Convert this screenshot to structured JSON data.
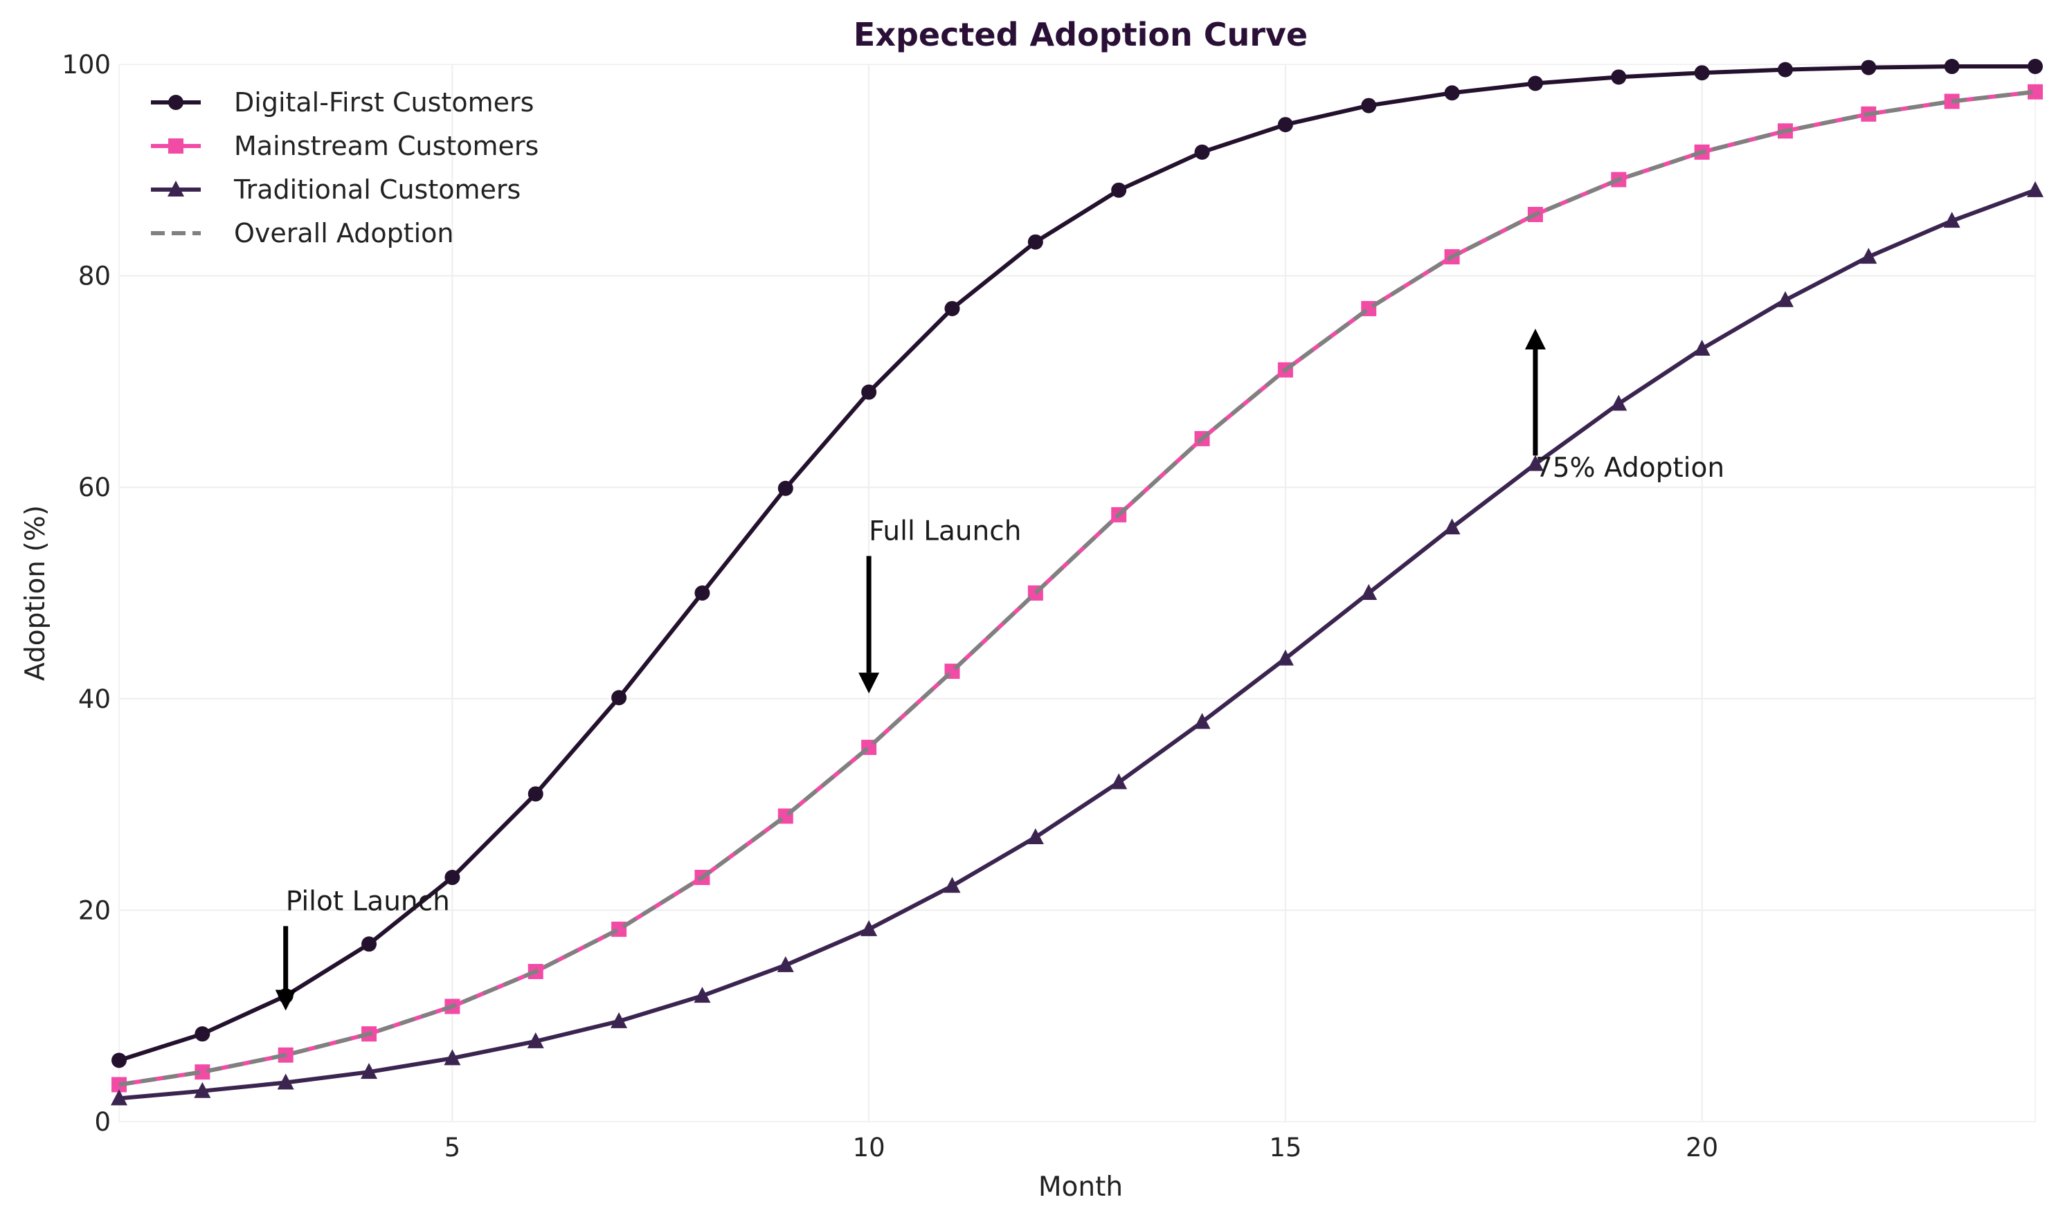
{
  "chart_data": {
    "type": "line",
    "title": "Expected Adoption Curve",
    "xlabel": "Month",
    "ylabel": "Adoption (%)",
    "xlim": [
      1,
      24
    ],
    "ylim": [
      0,
      100
    ],
    "xticks": [
      5,
      10,
      15,
      20
    ],
    "yticks": [
      0,
      20,
      40,
      60,
      80,
      100
    ],
    "grid": true,
    "legend_position": "top-left",
    "x": [
      1,
      2,
      3,
      4,
      5,
      6,
      7,
      8,
      9,
      10,
      11,
      12,
      13,
      14,
      15,
      16,
      17,
      18,
      19,
      20,
      21,
      22,
      23,
      24
    ],
    "series": [
      {
        "name": "Digital-First Customers",
        "color": "#24112e",
        "marker": "circle",
        "dashed": false,
        "values": [
          5.8,
          8.3,
          11.9,
          16.8,
          23.1,
          31.0,
          40.1,
          50.0,
          59.9,
          69.0,
          76.9,
          83.2,
          88.1,
          91.7,
          94.3,
          96.1,
          97.3,
          98.2,
          98.8,
          99.2,
          99.5,
          99.7,
          99.8,
          99.8
        ]
      },
      {
        "name": "Mainstream Customers",
        "color": "#f24ba6",
        "marker": "square",
        "dashed": false,
        "values": [
          3.5,
          4.7,
          6.3,
          8.3,
          10.9,
          14.2,
          18.2,
          23.1,
          28.9,
          35.4,
          42.6,
          50.0,
          57.4,
          64.6,
          71.1,
          76.9,
          81.8,
          85.8,
          89.1,
          91.7,
          93.7,
          95.3,
          96.5,
          97.4
        ]
      },
      {
        "name": "Traditional Customers",
        "color": "#3b2550",
        "marker": "triangle",
        "dashed": false,
        "values": [
          2.2,
          2.9,
          3.7,
          4.7,
          6.0,
          7.6,
          9.5,
          11.9,
          14.8,
          18.2,
          22.3,
          26.9,
          32.1,
          37.8,
          43.8,
          50.0,
          56.2,
          62.2,
          67.9,
          73.1,
          77.7,
          81.8,
          85.2,
          88.1
        ]
      },
      {
        "name": "Overall Adoption",
        "color": "#808080",
        "marker": "none",
        "dashed": true,
        "values": [
          3.5,
          4.7,
          6.3,
          8.3,
          10.9,
          14.2,
          18.2,
          23.1,
          28.9,
          35.4,
          42.6,
          50.0,
          57.4,
          64.6,
          71.1,
          76.9,
          81.8,
          85.8,
          89.1,
          91.7,
          93.7,
          95.3,
          96.5,
          97.4
        ]
      }
    ],
    "annotations": [
      {
        "text": "Pilot Launch",
        "x": 3,
        "text_y": 20.0,
        "arrow_tail_y": 18.5,
        "arrow_head_y": 10.5
      },
      {
        "text": "Full Launch",
        "x": 10,
        "text_y": 55.0,
        "arrow_tail_y": 53.5,
        "arrow_head_y": 40.5
      },
      {
        "text": "75% Adoption",
        "x": 18,
        "text_y": 61.0,
        "arrow_tail_y": 63.0,
        "arrow_head_y": 75.0
      }
    ]
  }
}
